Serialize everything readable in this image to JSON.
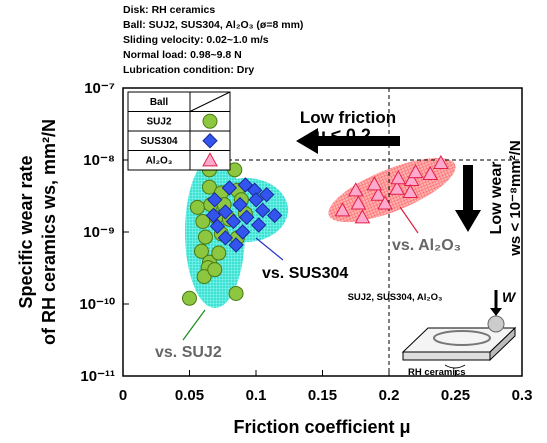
{
  "chart_data": {
    "type": "scatter",
    "subtitle_lines": [
      "Disk: RH ceramics",
      "Ball: SUJ2, SUS304, Al₂O₃ (ø=8 mm)",
      "Sliding velocity: 0.02~1.0 m/s",
      "Normal load: 0.98~9.8 N",
      "Lubrication condition: Dry"
    ],
    "xlabel": "Friction coefficient μ",
    "ylabel": [
      "Specific wear rate",
      "of RH ceramics ws, mm²/N"
    ],
    "xlim": [
      0,
      0.3
    ],
    "xticks": [
      0,
      0.05,
      0.1,
      0.15,
      0.2,
      0.25,
      0.3
    ],
    "ylim": [
      1e-11,
      1e-07
    ],
    "log_y": true,
    "yticks": [
      {
        "value": 1e-11,
        "label": "10⁻¹¹"
      },
      {
        "value": 1e-10,
        "label": "10⁻¹⁰"
      },
      {
        "value": 1e-09,
        "label": "10⁻⁹"
      },
      {
        "value": 1e-08,
        "label": "10⁻⁸"
      },
      {
        "value": 1e-07,
        "label": "10⁻⁷"
      }
    ],
    "threshold_x": 0.2,
    "threshold_y": 1e-08,
    "legend_title": "Ball",
    "series": [
      {
        "name": "SUJ2",
        "color": "#8dc63f",
        "marker": "circle",
        "x": [
          0.065,
          0.084,
          0.065,
          0.074,
          0.086,
          0.056,
          0.066,
          0.076,
          0.089,
          0.06,
          0.07,
          0.08,
          0.092,
          0.062,
          0.074,
          0.086,
          0.059,
          0.065,
          0.072,
          0.064,
          0.061,
          0.069,
          0.085,
          0.05
        ],
        "values": [
          7.3e-09,
          7.3e-09,
          4.2e-09,
          3.5e-09,
          3.8e-09,
          2.2e-09,
          2.4e-09,
          2.4e-09,
          2.8e-09,
          1.4e-09,
          1.6e-09,
          1.5e-09,
          1.8e-09,
          8.5e-10,
          9.4e-10,
          8.3e-10,
          5.4e-10,
          3.8e-10,
          5.1e-10,
          3.2e-10,
          2.4e-10,
          3e-10,
          1.4e-10,
          1.2e-10
        ]
      },
      {
        "name": "SUS304",
        "color": "#3355ee",
        "marker": "diamond",
        "x": [
          0.069,
          0.08,
          0.092,
          0.099,
          0.068,
          0.077,
          0.088,
          0.1,
          0.108,
          0.071,
          0.083,
          0.093,
          0.105,
          0.077,
          0.09,
          0.102,
          0.114,
          0.085
        ],
        "values": [
          2.8e-09,
          4.1e-09,
          4.5e-09,
          3.8e-09,
          1.7e-09,
          1.9e-09,
          2.4e-09,
          2.8e-09,
          3.3e-09,
          1.2e-09,
          1.4e-09,
          1.6e-09,
          2e-09,
          8.3e-10,
          1e-09,
          1.25e-09,
          1.7e-09,
          6.6e-10
        ]
      },
      {
        "name": "Al₂O₃",
        "color": "#ffaacc",
        "marker": "triangle",
        "x": [
          0.165,
          0.177,
          0.192,
          0.206,
          0.217,
          0.231,
          0.239,
          0.175,
          0.189,
          0.207,
          0.22,
          0.18,
          0.197,
          0.216
        ],
        "values": [
          2e-09,
          2.5e-09,
          3.3e-09,
          4e-09,
          5.3e-09,
          6.4e-09,
          9.1e-09,
          3.8e-09,
          4.6e-09,
          5.6e-09,
          6.8e-09,
          1.6e-09,
          2.5e-09,
          3.6e-09
        ]
      }
    ],
    "annotations": {
      "low_friction": "Low friction",
      "mu_limit": "μ ≤ 0.2",
      "low_wear": "Low wear",
      "ws_limit": "ws < 10⁻⁸mm²/N",
      "vs_suj2": "vs. SUJ2",
      "vs_sus304": "vs. SUS304",
      "vs_al2o3": "vs. Al₂O₃",
      "inset_balls": "SUJ2, SUS304, Al₂O₃",
      "inset_load": "W",
      "inset_disk": "RH ceramics"
    }
  }
}
